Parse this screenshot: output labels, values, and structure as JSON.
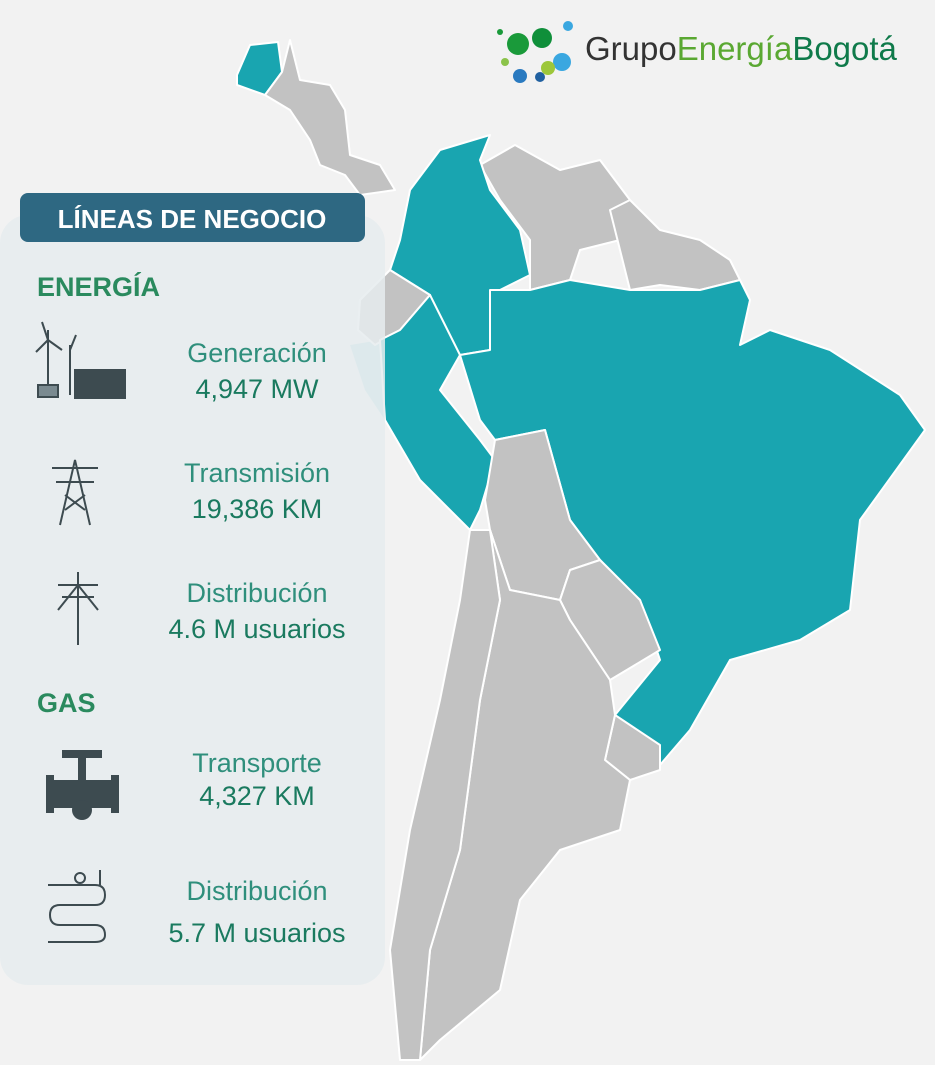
{
  "logo": {
    "part1": "Grupo",
    "part2": "Energía",
    "part3": "Bogotá"
  },
  "panel": {
    "title": "LÍNEAS DE NEGOCIO",
    "sections": [
      {
        "title": "ENERGÍA",
        "items": [
          {
            "label": "Generación",
            "value": "4,947 MW"
          },
          {
            "label": "Transmisión",
            "value": "19,386 KM"
          },
          {
            "label": "Distribución",
            "value": "4.6 M usuarios"
          }
        ]
      },
      {
        "title": "GAS",
        "items": [
          {
            "label": "Transporte",
            "value": "4,327 KM"
          },
          {
            "label": "Distribución",
            "value": "5.7 M usuarios"
          }
        ]
      }
    ]
  }
}
